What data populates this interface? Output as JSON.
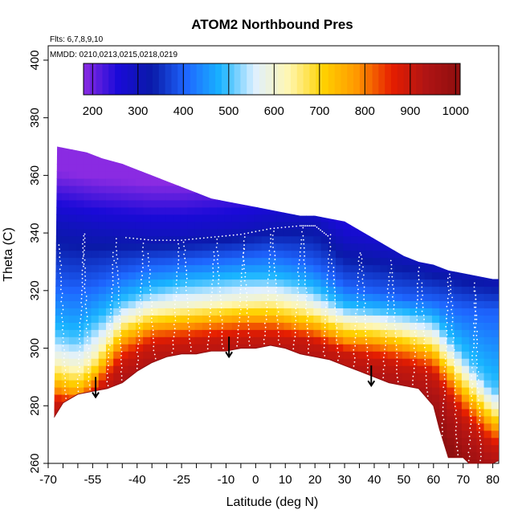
{
  "chart_data": {
    "type": "heatmap",
    "title": "ATOM2 Northbound Pres",
    "annotations": {
      "flights": "Flts: 6,7,8,9,10",
      "dates": "MMDD: 0210,0213,0215,0218,0219"
    },
    "xlabel": "Latitude (deg N)",
    "ylabel": "Theta (C)",
    "xlim": [
      -70,
      82
    ],
    "ylim": [
      260,
      405
    ],
    "x_ticks": [
      -70,
      -65,
      -60,
      -55,
      -50,
      -45,
      -40,
      -35,
      -30,
      -25,
      -20,
      -15,
      -10,
      -5,
      0,
      5,
      10,
      15,
      20,
      25,
      30,
      35,
      40,
      45,
      50,
      55,
      60,
      65,
      70,
      75,
      80
    ],
    "x_tick_labels": [
      "-70",
      "-55",
      "-40",
      "-25",
      "-10",
      "0",
      "10",
      "20",
      "30",
      "40",
      "50",
      "60",
      "70",
      "80"
    ],
    "x_tick_label_values": [
      -70,
      -55,
      -40,
      -25,
      -10,
      0,
      10,
      20,
      30,
      40,
      50,
      60,
      70,
      80
    ],
    "y_ticks": [
      260,
      280,
      300,
      320,
      340,
      360,
      380,
      400
    ],
    "y_tick_labels": [
      "260",
      "280",
      "300",
      "320",
      "340",
      "360",
      "380",
      "400"
    ],
    "colorbar": {
      "label_values": [
        200,
        300,
        400,
        500,
        600,
        700,
        800,
        900,
        1000
      ],
      "labels": [
        "200",
        "300",
        "400",
        "500",
        "600",
        "700",
        "800",
        "900",
        "1000"
      ],
      "range": [
        180,
        1010
      ]
    },
    "colors": {
      "scale": [
        "#8a2be2",
        "#1a0ad8",
        "#0a1aa8",
        "#1e66ff",
        "#19b4ff",
        "#dff0ff",
        "#fff6b0",
        "#ffd200",
        "#ff9600",
        "#e61e00",
        "#b01414",
        "#8e0f0f"
      ],
      "points": "#ffffff",
      "arrows": "#000000"
    },
    "top_boundary": [
      [
        -67,
        370
      ],
      [
        -62,
        369
      ],
      [
        -57,
        368
      ],
      [
        -52,
        366
      ],
      [
        -45,
        364
      ],
      [
        -40,
        362
      ],
      [
        -35,
        360
      ],
      [
        -30,
        358
      ],
      [
        -25,
        356
      ],
      [
        -20,
        354
      ],
      [
        -15,
        352
      ],
      [
        -10,
        351
      ],
      [
        -5,
        350
      ],
      [
        0,
        349
      ],
      [
        5,
        348
      ],
      [
        10,
        347
      ],
      [
        15,
        346
      ],
      [
        20,
        346
      ],
      [
        25,
        345
      ],
      [
        30,
        344
      ],
      [
        35,
        341
      ],
      [
        40,
        338
      ],
      [
        45,
        335
      ],
      [
        50,
        332
      ],
      [
        55,
        330
      ],
      [
        60,
        329
      ],
      [
        65,
        327
      ],
      [
        70,
        326
      ],
      [
        75,
        325
      ],
      [
        80,
        324
      ],
      [
        82,
        324
      ]
    ],
    "bottom_boundary": [
      [
        -68,
        276
      ],
      [
        -65,
        281
      ],
      [
        -60,
        284
      ],
      [
        -55,
        285
      ],
      [
        -50,
        286
      ],
      [
        -45,
        288
      ],
      [
        -40,
        292
      ],
      [
        -35,
        295
      ],
      [
        -30,
        297
      ],
      [
        -25,
        298
      ],
      [
        -20,
        298
      ],
      [
        -15,
        299
      ],
      [
        -10,
        299
      ],
      [
        -5,
        300
      ],
      [
        0,
        300
      ],
      [
        5,
        301
      ],
      [
        10,
        300
      ],
      [
        15,
        298
      ],
      [
        20,
        297
      ],
      [
        25,
        296
      ],
      [
        30,
        294
      ],
      [
        35,
        292
      ],
      [
        40,
        290
      ],
      [
        45,
        288
      ],
      [
        50,
        287
      ],
      [
        55,
        286
      ],
      [
        60,
        280
      ],
      [
        62,
        272
      ],
      [
        65,
        262
      ],
      [
        70,
        262
      ],
      [
        72,
        260
      ],
      [
        80,
        260
      ],
      [
        82,
        261
      ]
    ],
    "contours": [
      {
        "value": 300,
        "points": [
          [
            -67,
            343
          ],
          [
            -60,
            342
          ],
          [
            -55,
            341
          ],
          [
            -45,
            340
          ],
          [
            -35,
            339
          ],
          [
            -25,
            339
          ],
          [
            -15,
            340
          ],
          [
            -5,
            341
          ],
          [
            5,
            343
          ],
          [
            15,
            344
          ],
          [
            20,
            344
          ],
          [
            25,
            340
          ],
          [
            30,
            336
          ],
          [
            40,
            334
          ],
          [
            50,
            332
          ],
          [
            60,
            329
          ],
          [
            70,
            327
          ],
          [
            80,
            325
          ]
        ]
      },
      {
        "value": 400,
        "points": [
          [
            -67,
            322
          ],
          [
            -60,
            321
          ],
          [
            -55,
            322
          ],
          [
            -45,
            326
          ],
          [
            -35,
            329
          ],
          [
            -25,
            330
          ],
          [
            -15,
            331
          ],
          [
            -5,
            332
          ],
          [
            5,
            333
          ],
          [
            15,
            331
          ],
          [
            20,
            329
          ],
          [
            25,
            326
          ],
          [
            30,
            322
          ],
          [
            40,
            320
          ],
          [
            50,
            318
          ],
          [
            60,
            317
          ],
          [
            70,
            314
          ],
          [
            80,
            313
          ]
        ]
      },
      {
        "value": 500,
        "points": [
          [
            -67,
            305
          ],
          [
            -60,
            303
          ],
          [
            -55,
            308
          ],
          [
            -45,
            316
          ],
          [
            -35,
            320
          ],
          [
            -25,
            322
          ],
          [
            -15,
            323
          ],
          [
            -5,
            324
          ],
          [
            5,
            324
          ],
          [
            15,
            322
          ],
          [
            20,
            320
          ],
          [
            25,
            317
          ],
          [
            30,
            314
          ],
          [
            40,
            313
          ],
          [
            50,
            312
          ],
          [
            60,
            310
          ],
          [
            70,
            298
          ],
          [
            80,
            286
          ]
        ]
      },
      {
        "value": 600,
        "points": [
          [
            -67,
            296
          ],
          [
            -60,
            294
          ],
          [
            -55,
            298
          ],
          [
            -45,
            310
          ],
          [
            -35,
            314
          ],
          [
            -25,
            315
          ],
          [
            -15,
            316
          ],
          [
            -5,
            317
          ],
          [
            5,
            318
          ],
          [
            15,
            316
          ],
          [
            20,
            314
          ],
          [
            25,
            312
          ],
          [
            30,
            310
          ],
          [
            40,
            309
          ],
          [
            50,
            307
          ],
          [
            60,
            304
          ],
          [
            70,
            292
          ],
          [
            80,
            280
          ]
        ]
      },
      {
        "value": 700,
        "points": [
          [
            -67,
            290
          ],
          [
            -60,
            288
          ],
          [
            -55,
            292
          ],
          [
            -45,
            306
          ],
          [
            -35,
            310
          ],
          [
            -25,
            311
          ],
          [
            -15,
            312
          ],
          [
            -5,
            313
          ],
          [
            5,
            313
          ],
          [
            15,
            311
          ],
          [
            20,
            310
          ],
          [
            25,
            308
          ],
          [
            30,
            306
          ],
          [
            40,
            305
          ],
          [
            50,
            303
          ],
          [
            60,
            300
          ],
          [
            70,
            287
          ],
          [
            80,
            276
          ]
        ]
      },
      {
        "value": 800,
        "points": [
          [
            -67,
            285
          ],
          [
            -60,
            283
          ],
          [
            -55,
            287
          ],
          [
            -45,
            301
          ],
          [
            -35,
            306
          ],
          [
            -25,
            307
          ],
          [
            -15,
            308
          ],
          [
            -5,
            309
          ],
          [
            5,
            309
          ],
          [
            15,
            307
          ],
          [
            20,
            306
          ],
          [
            25,
            304
          ],
          [
            30,
            302
          ],
          [
            40,
            301
          ],
          [
            50,
            299
          ],
          [
            60,
            296
          ],
          [
            70,
            282
          ],
          [
            80,
            271
          ]
        ]
      },
      {
        "value": 900,
        "points": [
          [
            -67,
            281
          ],
          [
            -60,
            280
          ],
          [
            -55,
            283
          ],
          [
            -45,
            295
          ],
          [
            -35,
            301
          ],
          [
            -25,
            302
          ],
          [
            -15,
            303
          ],
          [
            -5,
            304
          ],
          [
            5,
            304
          ],
          [
            15,
            303
          ],
          [
            20,
            302
          ],
          [
            25,
            300
          ],
          [
            30,
            298
          ],
          [
            40,
            296
          ],
          [
            50,
            294
          ],
          [
            60,
            291
          ],
          [
            70,
            276
          ],
          [
            80,
            266
          ]
        ]
      }
    ],
    "arrows": [
      {
        "lat": -54,
        "from": 290,
        "to": 283
      },
      {
        "lat": -9,
        "from": 304,
        "to": 297
      },
      {
        "lat": 39,
        "from": 294,
        "to": 287
      }
    ]
  }
}
